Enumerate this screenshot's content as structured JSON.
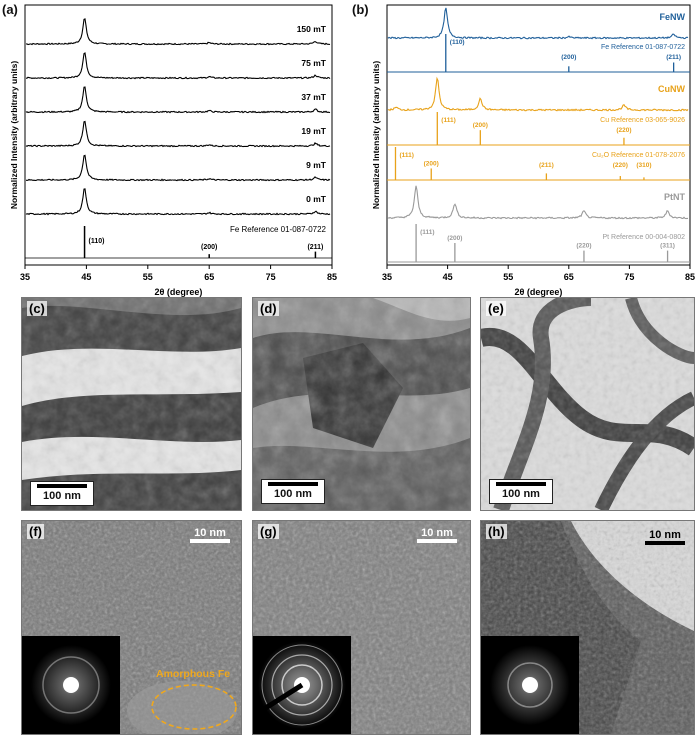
{
  "panels": {
    "a": "(a)",
    "b": "(b)",
    "c": "(c)",
    "d": "(d)",
    "e": "(e)",
    "f": "(f)",
    "g": "(g)",
    "h": "(h)"
  },
  "chart_data": [
    {
      "type": "line",
      "panel": "(a)",
      "xlabel": "2θ (degree)",
      "ylabel": "Normalized Intensity (arbitrary units)",
      "xlim": [
        35,
        85
      ],
      "xticks": [
        35,
        45,
        55,
        65,
        75,
        85
      ],
      "series": [
        {
          "name": "150 mT",
          "peaks": [
            44.7,
            65.0,
            82.3
          ],
          "rel_intensity": [
            1.0,
            0.05,
            0.1
          ]
        },
        {
          "name": "75 mT",
          "peaks": [
            44.7,
            65.0,
            82.3
          ],
          "rel_intensity": [
            1.0,
            0.05,
            0.1
          ]
        },
        {
          "name": "37 mT",
          "peaks": [
            44.7,
            65.0,
            82.3
          ],
          "rel_intensity": [
            1.0,
            0.05,
            0.1
          ]
        },
        {
          "name": "19 mT",
          "peaks": [
            44.7,
            65.0,
            82.3
          ],
          "rel_intensity": [
            1.0,
            0.05,
            0.1
          ]
        },
        {
          "name": "9 mT",
          "peaks": [
            44.7,
            65.0,
            82.3
          ],
          "rel_intensity": [
            1.0,
            0.05,
            0.1
          ]
        },
        {
          "name": "0 mT",
          "peaks": [
            44.7,
            65.0,
            82.3
          ],
          "rel_intensity": [
            1.0,
            0.05,
            0.1
          ]
        }
      ],
      "reference": {
        "name": "Fe Reference 01-087-0722",
        "lines": [
          {
            "x": 44.7,
            "label": "(110)",
            "h": 1.0
          },
          {
            "x": 65.0,
            "label": "(200)",
            "h": 0.12
          },
          {
            "x": 82.3,
            "label": "(211)",
            "h": 0.2
          }
        ]
      }
    },
    {
      "type": "line",
      "panel": "(b)",
      "xlabel": "2θ (degree)",
      "ylabel": "Normalized Intensity (arbitrary units)",
      "xlim": [
        35,
        85
      ],
      "xticks": [
        35,
        45,
        55,
        65,
        75,
        85
      ],
      "groups": [
        {
          "series": {
            "name": "FeNW",
            "color": "#1f5f9a",
            "peaks": [
              44.7,
              65.0,
              82.3
            ],
            "rel_intensity": [
              1.0,
              0.04,
              0.12
            ]
          },
          "references": [
            {
              "name": "Fe Reference 01-087-0722",
              "color": "#1f5f9a",
              "lines": [
                {
                  "x": 44.7,
                  "label": "(110)",
                  "h": 1.0
                },
                {
                  "x": 65.0,
                  "label": "(200)",
                  "h": 0.15
                },
                {
                  "x": 82.3,
                  "label": "(211)",
                  "h": 0.25
                }
              ]
            }
          ]
        },
        {
          "series": {
            "name": "CuNW",
            "color": "#e8a21a",
            "peaks": [
              36.5,
              43.3,
              50.4,
              74.1
            ],
            "rel_intensity": [
              0.08,
              1.0,
              0.35,
              0.15
            ]
          },
          "references": [
            {
              "name": "Cu Reference 03-065-9026",
              "color": "#e8a21a",
              "lines": [
                {
                  "x": 43.3,
                  "label": "(111)",
                  "h": 1.0
                },
                {
                  "x": 50.4,
                  "label": "(200)",
                  "h": 0.45
                },
                {
                  "x": 74.1,
                  "label": "(220)",
                  "h": 0.22
                }
              ]
            },
            {
              "name": "Cu₂O Reference 01-078-2076",
              "color": "#e8a21a",
              "lines": [
                {
                  "x": 36.4,
                  "label": "(111)",
                  "h": 1.0
                },
                {
                  "x": 42.3,
                  "label": "(200)",
                  "h": 0.35
                },
                {
                  "x": 61.3,
                  "label": "(211)",
                  "h": 0.2
                },
                {
                  "x": 73.5,
                  "label": "(220)",
                  "h": 0.12
                },
                {
                  "x": 77.4,
                  "label": "(310)",
                  "h": 0.08
                }
              ]
            }
          ]
        },
        {
          "series": {
            "name": "PtNT",
            "color": "#9a9a9a",
            "peaks": [
              39.8,
              46.2,
              67.5,
              81.3
            ],
            "rel_intensity": [
              1.0,
              0.45,
              0.22,
              0.22
            ]
          },
          "references": [
            {
              "name": "Pt Reference 00-004-0802",
              "color": "#9a9a9a",
              "lines": [
                {
                  "x": 39.8,
                  "label": "(111)",
                  "h": 1.0
                },
                {
                  "x": 46.2,
                  "label": "(200)",
                  "h": 0.5
                },
                {
                  "x": 67.5,
                  "label": "(220)",
                  "h": 0.3
                },
                {
                  "x": 81.3,
                  "label": "(311)",
                  "h": 0.3
                }
              ]
            }
          ]
        }
      ]
    }
  ],
  "images": {
    "c": {
      "scale": "100 nm"
    },
    "d": {
      "scale": "100 nm"
    },
    "e": {
      "scale": "100 nm"
    },
    "f": {
      "scale": "10 nm",
      "annotation": "Amorphous Fe",
      "annotation_color": "#f0a81c"
    },
    "g": {
      "scale": "10 nm"
    },
    "h": {
      "scale": "10 nm"
    }
  }
}
